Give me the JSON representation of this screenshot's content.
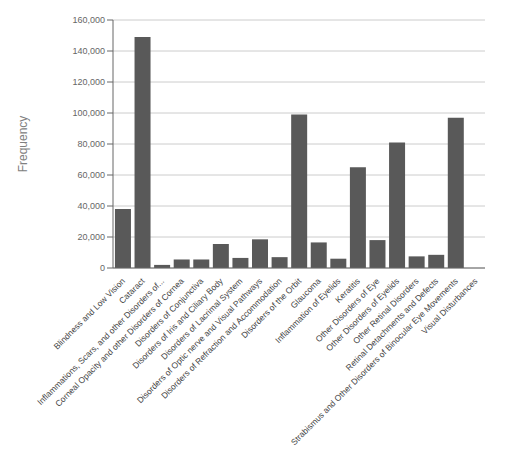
{
  "chart_data": {
    "type": "bar",
    "categories": [
      "Blindness and Low Vision",
      "Cataract",
      "Inflammations, Scars, and other Disorders of...",
      "Corneal Opacity and other Disorders of Cornea",
      "Disorders of Conjunctiva",
      "Disorders of Iris and Ciliary Body",
      "Disorders of Lacrimal System",
      "Disorders of Optic nerve and Visual Pathways",
      "Disorders of Refraction and Accommodation",
      "Disorders of the Orbit",
      "Glaucoma",
      "Inflammation of Eyelids",
      "Keratitis",
      "Other Disorders of Eye",
      "Other Disorders of Eyelids",
      "Other Retinal Disorders",
      "Retinal Detachments and Defects",
      "Strabismus and Other Disorders of Binocular Eye Movements",
      "Visual Disturbances"
    ],
    "values": [
      38000,
      149000,
      2000,
      5500,
      5500,
      15500,
      6500,
      18500,
      7000,
      99000,
      16500,
      6000,
      65000,
      18000,
      81000,
      7500,
      8500,
      97000,
      0
    ],
    "color": "#595959",
    "ylabel": "Frequency",
    "ylim": [
      0,
      160000
    ],
    "yticks": [
      0,
      {
        "value": 20000,
        "label": "20,000"
      },
      {
        "value": 40000,
        "label": "40,000"
      },
      {
        "value": 60000,
        "label": "60,000"
      },
      {
        "value": 80000,
        "label": "80,000"
      },
      {
        "value": 100000,
        "label": "100,000"
      },
      {
        "value": 120000,
        "label": "120,000"
      },
      {
        "value": 140000,
        "label": "140,000"
      },
      {
        "value": 160000,
        "label": "160,000"
      }
    ],
    "grid": true
  }
}
